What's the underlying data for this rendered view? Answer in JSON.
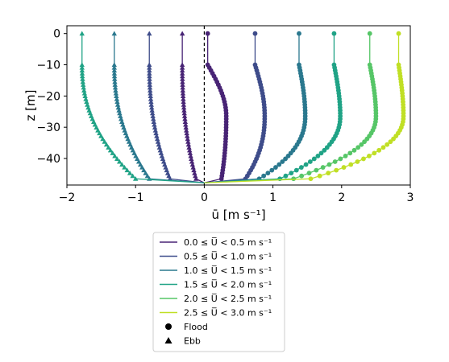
{
  "chart_data": {
    "type": "line",
    "xlabel": "ū [m s⁻¹]",
    "ylabel": "z [m]",
    "xlim": [
      -2,
      3
    ],
    "ylim": [
      -48.5,
      2.5
    ],
    "xticks": [
      "−2",
      "−1",
      "0",
      "1",
      "2",
      "3"
    ],
    "yticks": [
      "0",
      "−10",
      "−20",
      "−30",
      "−40"
    ],
    "xtick_values": [
      -2,
      -1,
      0,
      1,
      2,
      3
    ],
    "ytick_values": [
      0,
      -10,
      -20,
      -30,
      -40
    ],
    "reference_line": {
      "x": 0,
      "style": "dashed"
    },
    "bed_depth": -47.8,
    "grid": false,
    "legend_placement": "below",
    "legend": {
      "entries": [
        {
          "label": "0.0 ≤ U̅ < 0.5 m s⁻¹",
          "color": "#482475"
        },
        {
          "label": "0.5 ≤ U̅ < 1.0 m s⁻¹",
          "color": "#3e4c8a"
        },
        {
          "label": "1.0 ≤ U̅ < 1.5 m s⁻¹",
          "color": "#2a788e"
        },
        {
          "label": "1.5 ≤ U̅ < 2.0 m s⁻¹",
          "color": "#20a386"
        },
        {
          "label": "2.0 ≤ U̅ < 2.5 m s⁻¹",
          "color": "#56c667"
        },
        {
          "label": "2.5 ≤ U̅ < 3.0 m s⁻¹",
          "color": "#c0df25"
        }
      ],
      "markers": [
        {
          "label": "Flood",
          "shape": "circle"
        },
        {
          "label": "Ebb",
          "shape": "triangle"
        }
      ]
    },
    "series": [
      {
        "class_index": 0,
        "tide": "flood",
        "color": "#482475",
        "u_surface": 0.05,
        "u_peak": 0.32,
        "u_near_bed": 0.25
      },
      {
        "class_index": 1,
        "tide": "flood",
        "color": "#3e4c8a",
        "u_surface": 0.74,
        "u_peak": 0.88,
        "u_near_bed": 0.6
      },
      {
        "class_index": 2,
        "tide": "flood",
        "color": "#2a788e",
        "u_surface": 1.38,
        "u_peak": 1.47,
        "u_near_bed": 0.8
      },
      {
        "class_index": 3,
        "tide": "flood",
        "color": "#20a386",
        "u_surface": 1.89,
        "u_peak": 1.98,
        "u_near_bed": 1.1
      },
      {
        "class_index": 4,
        "tide": "flood",
        "color": "#56c667",
        "u_surface": 2.41,
        "u_peak": 2.5,
        "u_near_bed": 1.3
      },
      {
        "class_index": 5,
        "tide": "flood",
        "color": "#c0df25",
        "u_surface": 2.83,
        "u_peak": 2.9,
        "u_near_bed": 1.55
      },
      {
        "class_index": 0,
        "tide": "ebb",
        "color": "#482475",
        "u_surface": -0.32,
        "u_peak": -0.32,
        "u_near_bed": -0.12
      },
      {
        "class_index": 1,
        "tide": "ebb",
        "color": "#3e4c8a",
        "u_surface": -0.8,
        "u_peak": -0.8,
        "u_near_bed": -0.5
      },
      {
        "class_index": 2,
        "tide": "ebb",
        "color": "#2a788e",
        "u_surface": -1.31,
        "u_peak": -1.31,
        "u_near_bed": -0.8
      },
      {
        "class_index": 3,
        "tide": "ebb",
        "color": "#20a386",
        "u_surface": -1.78,
        "u_peak": -1.78,
        "u_near_bed": -1.0
      }
    ]
  }
}
